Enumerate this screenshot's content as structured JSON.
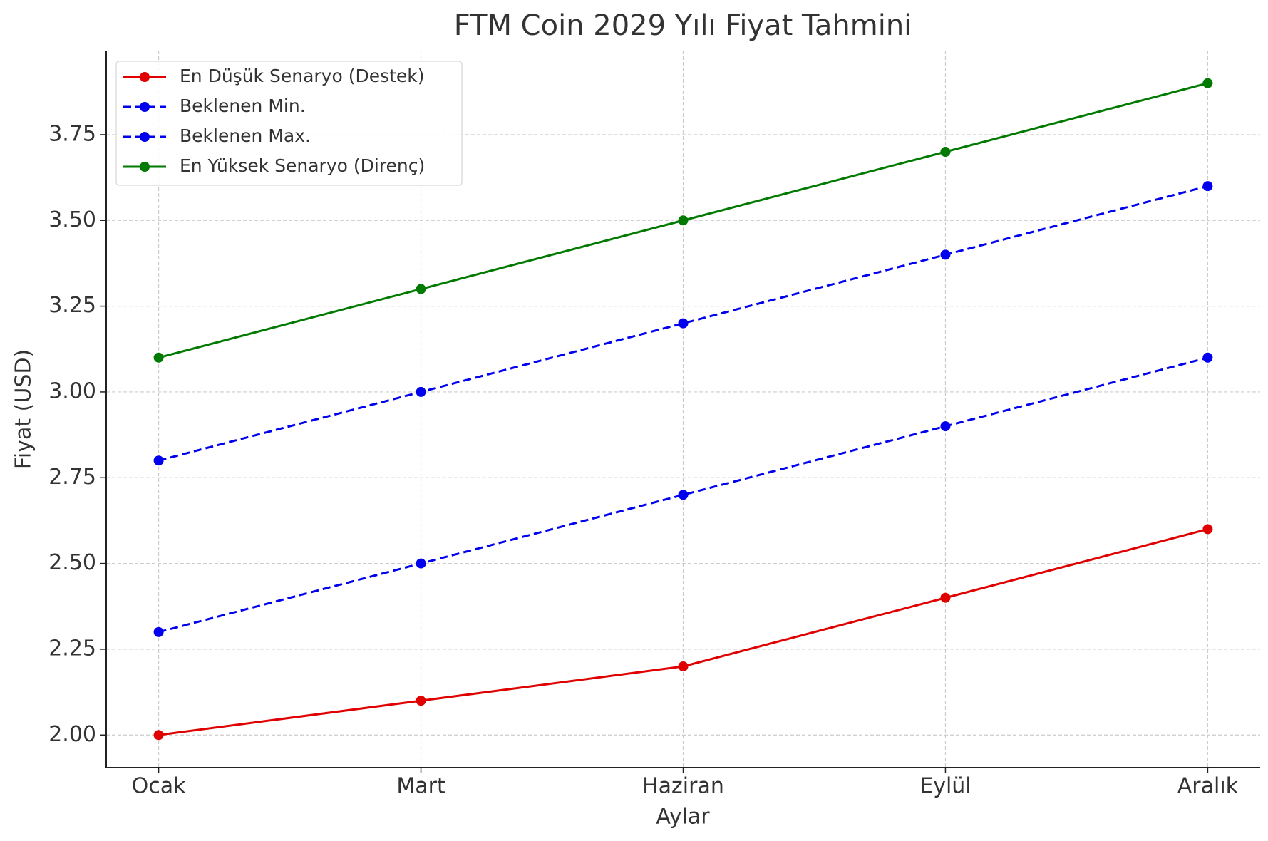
{
  "chart_data": {
    "type": "line",
    "title": "FTM Coin 2029 Yılı Fiyat Tahmini",
    "x_label": "Aylar",
    "y_label": "Fiyat (USD)",
    "categories": [
      "Ocak",
      "Mart",
      "Haziran",
      "Eylül",
      "Aralık"
    ],
    "series": [
      {
        "name": "En Düşük Senaryo (Destek)",
        "color": "#e00000",
        "dashed": false,
        "values": [
          2.0,
          2.1,
          2.2,
          2.4,
          2.6
        ]
      },
      {
        "name": "Beklenen Min.",
        "color": "#0000ee",
        "dashed": true,
        "values": [
          2.3,
          2.5,
          2.7,
          2.9,
          3.1
        ]
      },
      {
        "name": "Beklenen Max.",
        "color": "#0000ee",
        "dashed": true,
        "values": [
          2.8,
          3.0,
          3.2,
          3.4,
          3.6
        ]
      },
      {
        "name": "En Yüksek Senaryo (Direnç)",
        "color": "#007a00",
        "dashed": false,
        "values": [
          3.1,
          3.3,
          3.5,
          3.7,
          3.9
        ]
      }
    ],
    "ylim": [
      1.905,
      3.995
    ],
    "yticks": [
      {
        "value": 2,
        "label": "2.00"
      },
      2.25,
      {
        "value": 2.5,
        "label": "2.50"
      },
      2.75,
      {
        "value": 3,
        "label": "3.00"
      },
      3.25,
      {
        "value": 3.5,
        "label": "3.50"
      },
      3.75
    ],
    "grid": true,
    "legend": "upper-left"
  }
}
